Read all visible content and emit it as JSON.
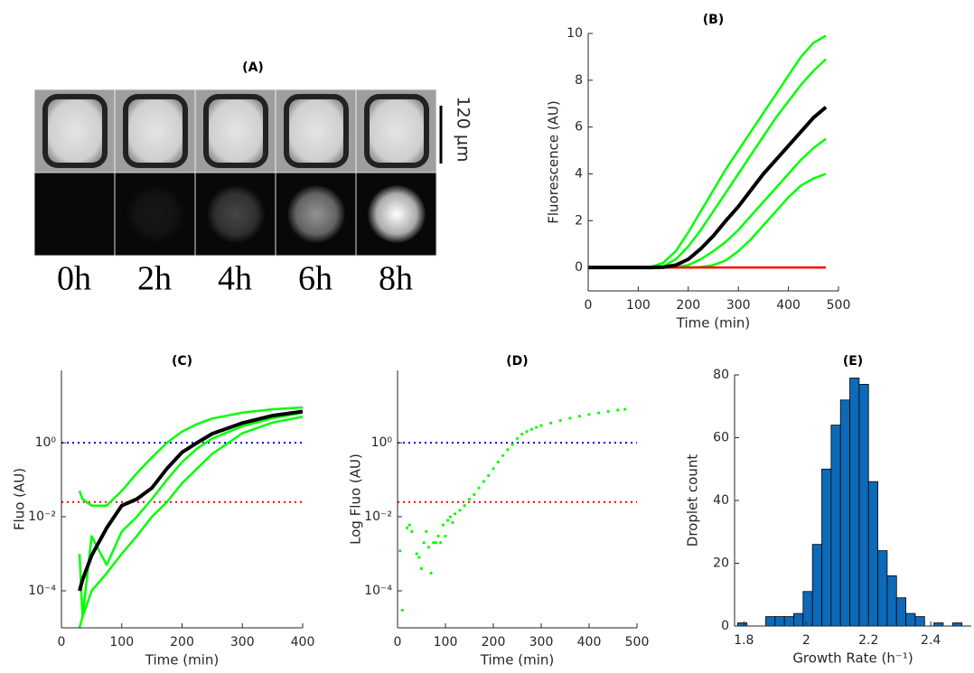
{
  "panel_a": {
    "title": "(A)",
    "time_labels": [
      "0h",
      "2h",
      "4h",
      "6h",
      "8h"
    ],
    "scale_bar": "120 µm"
  },
  "chart_data": [
    {
      "type": "line",
      "title": "(B)",
      "x_label": "Time (min)",
      "y_label": "Fluorescence (AU)",
      "x": [
        0,
        25,
        50,
        75,
        100,
        125,
        150,
        175,
        200,
        225,
        250,
        275,
        300,
        325,
        350,
        375,
        400,
        425,
        450,
        475
      ],
      "series": [
        {
          "color": "#00ff00",
          "values": [
            0,
            0,
            0,
            0,
            0,
            0.02,
            0.2,
            0.7,
            1.5,
            2.4,
            3.3,
            4.2,
            5.0,
            5.8,
            6.6,
            7.4,
            8.2,
            9.0,
            9.6,
            9.9
          ]
        },
        {
          "color": "#00ff00",
          "values": [
            0,
            0,
            0,
            0,
            0,
            0,
            0.05,
            0.35,
            0.9,
            1.6,
            2.4,
            3.2,
            4.0,
            4.8,
            5.6,
            6.4,
            7.1,
            7.8,
            8.4,
            8.9
          ]
        },
        {
          "color": "#00ff00",
          "values": [
            0,
            0,
            0,
            0,
            0,
            0,
            0,
            0.02,
            0.1,
            0.35,
            0.7,
            1.1,
            1.6,
            2.2,
            2.8,
            3.4,
            4.0,
            4.6,
            5.1,
            5.5
          ]
        },
        {
          "color": "#00ff00",
          "values": [
            0,
            0,
            0,
            0,
            0,
            0,
            0,
            0,
            0,
            0.02,
            0.1,
            0.3,
            0.7,
            1.2,
            1.8,
            2.4,
            3.0,
            3.5,
            3.8,
            4.0
          ]
        },
        {
          "color": "#ff0000",
          "values": [
            0,
            0,
            0,
            0,
            0,
            0,
            0,
            0,
            0,
            0,
            0,
            0,
            0,
            0,
            0,
            0,
            0,
            0,
            0,
            0
          ]
        },
        {
          "color": "#000000",
          "values": [
            0,
            0,
            0,
            0,
            0,
            0,
            0.01,
            0.1,
            0.35,
            0.8,
            1.35,
            2.0,
            2.6,
            3.3,
            4.0,
            4.6,
            5.2,
            5.8,
            6.4,
            6.85
          ]
        }
      ],
      "xlim": [
        0,
        500
      ],
      "ylim": [
        -1,
        10
      ],
      "xticks": [
        0,
        100,
        200,
        300,
        400,
        500
      ],
      "yticks": [
        0,
        2,
        4,
        6,
        8,
        10
      ]
    },
    {
      "type": "line",
      "title": "(C)",
      "x_label": "Time (min)",
      "y_label": "Fluo (AU)",
      "x": [
        30,
        35,
        50,
        75,
        100,
        125,
        150,
        175,
        200,
        225,
        250,
        300,
        350,
        400
      ],
      "series": [
        {
          "color": "#00ff00",
          "values": [
            0.05,
            0.03,
            0.02,
            0.02,
            0.05,
            0.15,
            0.4,
            1.0,
            2.0,
            3.2,
            4.5,
            6.5,
            8,
            9
          ]
        },
        {
          "color": "#00ff00",
          "values": [
            0.001,
            2e-05,
            0.003,
            0.0005,
            0.004,
            0.01,
            0.03,
            0.1,
            0.3,
            0.7,
            1.3,
            2.8,
            4.6,
            6.5
          ]
        },
        {
          "color": "#00ff00",
          "values": [
            1e-05,
            2e-05,
            0.0001,
            0.0003,
            0.001,
            0.003,
            0.01,
            0.025,
            0.08,
            0.2,
            0.5,
            1.8,
            3.5,
            5
          ]
        },
        {
          "color": "#000000",
          "values": [
            0.0001,
            0.0002,
            0.0009,
            0.005,
            0.02,
            0.03,
            0.06,
            0.2,
            0.55,
            1,
            1.75,
            3.4,
            5.4,
            7
          ]
        }
      ],
      "hlines": [
        {
          "value": 1,
          "color": "#0000ff"
        },
        {
          "value": 0.025,
          "color": "#ff0000"
        }
      ],
      "ylog": true,
      "xlim": [
        0,
        400
      ],
      "ylim": [
        1e-05,
        90
      ],
      "xticks": [
        0,
        100,
        200,
        300,
        400
      ],
      "yticks": [
        {
          "value": 0.0001,
          "label": "10⁻⁴"
        },
        {
          "value": 0.01,
          "label": "10⁻²"
        },
        {
          "value": 1,
          "label": "10⁰"
        }
      ]
    },
    {
      "type": "scatter",
      "title": "(D)",
      "x_label": "Time (min)",
      "y_label": "Log Fluo (AU)",
      "color": "#00ff00",
      "x": [
        5,
        10,
        20,
        25,
        30,
        40,
        45,
        50,
        55,
        60,
        65,
        70,
        75,
        80,
        85,
        90,
        95,
        100,
        105,
        110,
        115,
        120,
        130,
        140,
        150,
        160,
        170,
        180,
        190,
        200,
        210,
        220,
        230,
        240,
        250,
        260,
        270,
        280,
        290,
        300,
        320,
        340,
        360,
        380,
        400,
        420,
        440,
        460,
        475
      ],
      "values": [
        0.0012,
        3e-05,
        0.005,
        0.006,
        0.004,
        0.001,
        0.0008,
        0.0004,
        0.002,
        0.004,
        0.0015,
        0.0003,
        0.002,
        0.002,
        0.003,
        0.002,
        0.006,
        0.003,
        0.008,
        0.01,
        0.007,
        0.012,
        0.015,
        0.02,
        0.03,
        0.04,
        0.06,
        0.09,
        0.13,
        0.2,
        0.3,
        0.45,
        0.65,
        0.9,
        1.3,
        1.7,
        2.0,
        2.3,
        2.6,
        2.9,
        3.4,
        4.0,
        4.6,
        5.2,
        5.8,
        6.4,
        7.0,
        7.6,
        8.0
      ],
      "hlines": [
        {
          "value": 1,
          "color": "#0000ff"
        },
        {
          "value": 0.025,
          "color": "#ff0000"
        }
      ],
      "ylog": true,
      "xlim": [
        0,
        500
      ],
      "ylim": [
        1e-05,
        90
      ],
      "xticks": [
        0,
        100,
        200,
        300,
        400,
        500
      ],
      "yticks": [
        {
          "value": 0.0001,
          "label": "10⁻⁴"
        },
        {
          "value": 0.01,
          "label": "10⁻²"
        },
        {
          "value": 1,
          "label": "10⁰"
        }
      ]
    },
    {
      "type": "histogram",
      "title": "(E)",
      "x_label": "Growth Rate (h⁻¹)",
      "y_label": "Droplet count",
      "color": "#0c6ab8",
      "bins": [
        1.78,
        1.81,
        1.84,
        1.87,
        1.9,
        1.93,
        1.96,
        1.99,
        2.02,
        2.05,
        2.08,
        2.11,
        2.14,
        2.17,
        2.2,
        2.23,
        2.26,
        2.29,
        2.32,
        2.35,
        2.38,
        2.41,
        2.44,
        2.47,
        2.5,
        2.53
      ],
      "values": [
        1,
        0,
        0,
        3,
        3,
        3,
        4,
        11,
        26,
        50,
        64,
        72,
        79,
        77,
        46,
        24,
        16,
        9,
        4,
        3,
        0,
        1,
        0,
        1,
        0
      ],
      "xlim": [
        1.77,
        2.53
      ],
      "ylim": [
        0,
        80
      ],
      "xticks": [
        1.8,
        2,
        2.2,
        2.4
      ],
      "yticks": [
        0,
        20,
        40,
        60,
        80
      ]
    }
  ]
}
